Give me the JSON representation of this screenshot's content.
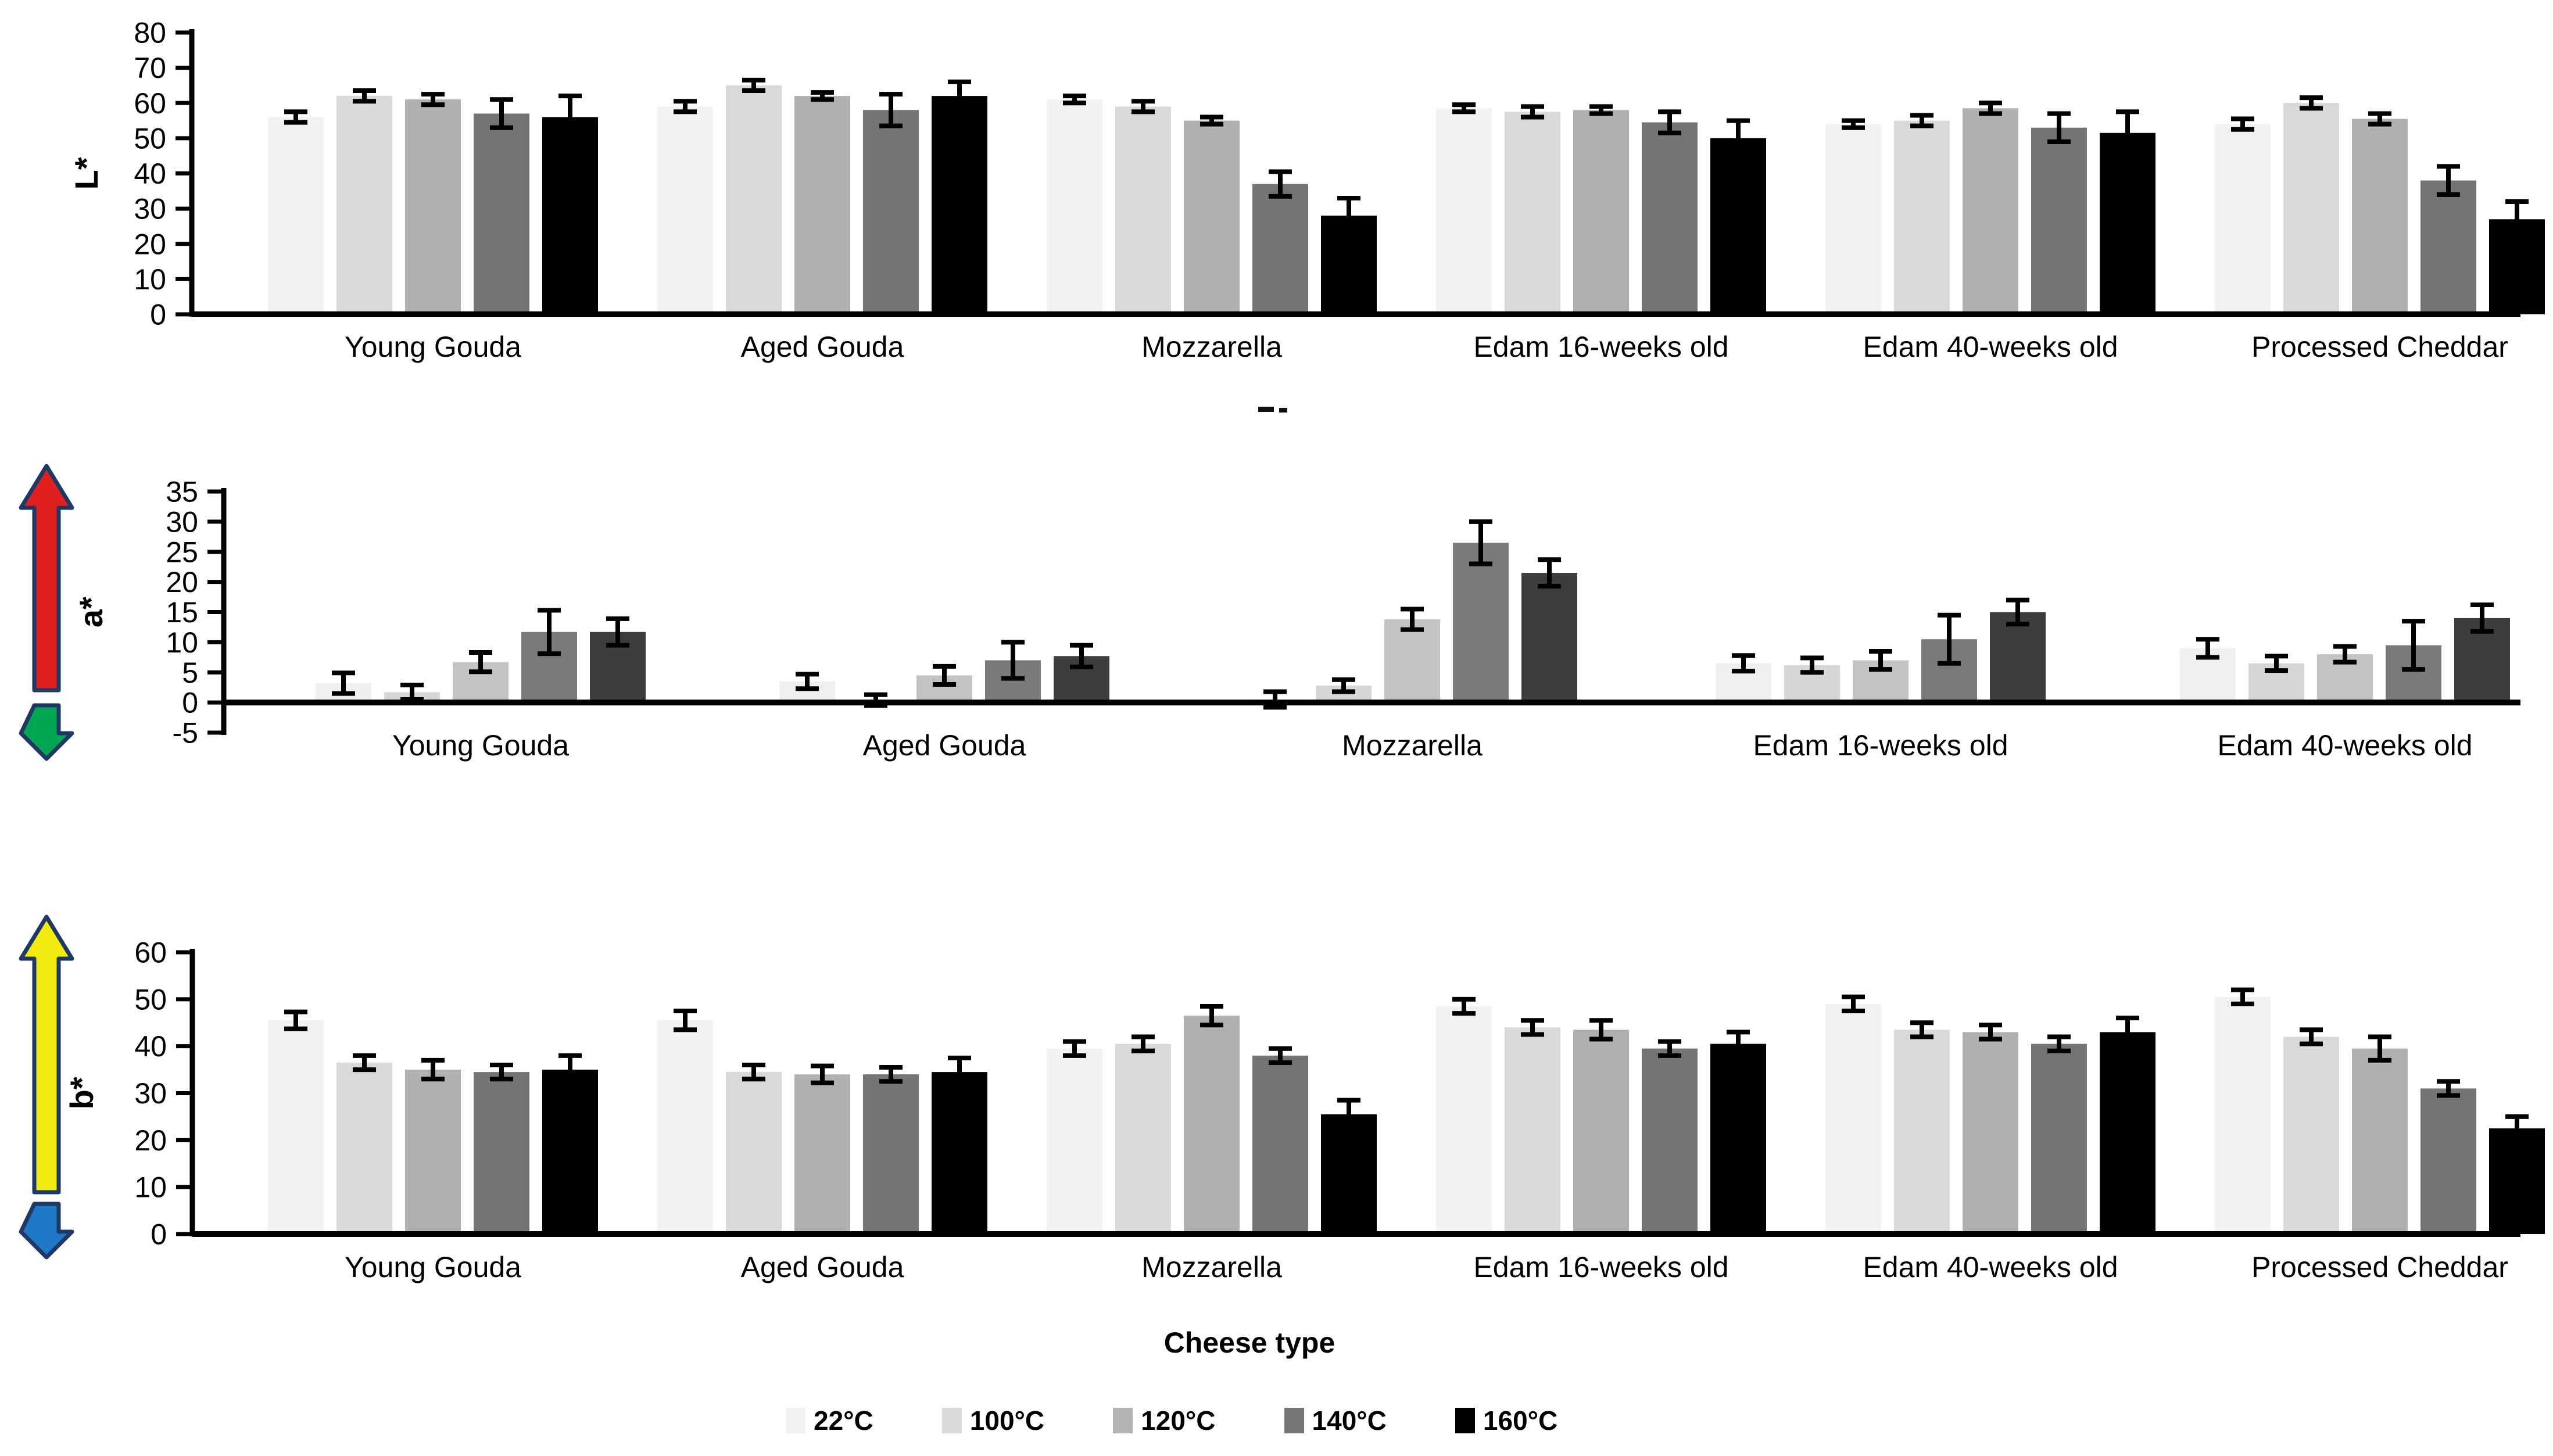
{
  "figure": {
    "background": "#ffffff",
    "text_color": "#000000"
  },
  "legend": {
    "position": "bottom-center",
    "items": [
      {
        "label": "22°C",
        "color": "#f2f2f2"
      },
      {
        "label": "100°C",
        "color": "#d9d9d9"
      },
      {
        "label": "120°C",
        "color": "#b3b3b3"
      },
      {
        "label": "140°C",
        "color": "#767676"
      },
      {
        "label": "160°C",
        "color": "#000000"
      }
    ]
  },
  "indicators": {
    "a_axis_up_arrow_color": "#e0201f",
    "a_axis_down_arrow_color": "#00a651",
    "b_axis_up_arrow_color": "#f2ea10",
    "b_axis_down_arrow_color": "#1e78c8",
    "outline_color": "#1f3864"
  },
  "chart_data": [
    {
      "type": "bar",
      "title": "",
      "ylabel": "L*",
      "xlabel": "",
      "ylim": [
        0,
        80
      ],
      "ytick_step": 10,
      "grid": false,
      "error_bars": true,
      "categories": [
        "Young Gouda",
        "Aged Gouda",
        "Mozzarella",
        "Edam 16-weeks old",
        "Edam 40-weeks old",
        "Processed Cheddar"
      ],
      "series": [
        {
          "name": "22°C",
          "values": [
            56,
            59,
            61,
            58.5,
            54,
            54
          ],
          "errors": [
            1.5,
            1.5,
            1,
            1,
            1,
            1.5
          ]
        },
        {
          "name": "100°C",
          "values": [
            62,
            65,
            59,
            57.5,
            55,
            60
          ],
          "errors": [
            1.5,
            1.5,
            1.5,
            1.5,
            1.5,
            1.5
          ]
        },
        {
          "name": "120°C",
          "values": [
            61,
            62,
            55,
            58,
            58.5,
            55.5
          ],
          "errors": [
            1.5,
            1,
            1,
            1,
            1.5,
            1.5
          ]
        },
        {
          "name": "140°C",
          "values": [
            57,
            58,
            37,
            54.5,
            53,
            38
          ],
          "errors": [
            4,
            4.5,
            3.5,
            3,
            4,
            4
          ]
        },
        {
          "name": "160°C",
          "values": [
            56,
            62,
            28,
            50,
            51.5,
            27
          ],
          "errors": [
            6,
            4,
            5,
            5,
            6,
            5
          ]
        }
      ],
      "palette": [
        "#f2f2f2",
        "#d9d9d9",
        "#b0b0b0",
        "#747474",
        "#000000"
      ]
    },
    {
      "type": "bar",
      "title": "",
      "ylabel": "a*",
      "xlabel": "",
      "ylim": [
        -5,
        35
      ],
      "ytick_step": 5,
      "grid": false,
      "error_bars": true,
      "categories": [
        "Young Gouda",
        "Aged Gouda",
        "Mozzarella",
        "Edam 16-weeks old",
        "Edam 40-weeks old"
      ],
      "series": [
        {
          "name": "22°C",
          "values": [
            3.2,
            3.5,
            0.5,
            6.5,
            9
          ],
          "errors": [
            1.7,
            1.2,
            1.3,
            1.3,
            1.5
          ]
        },
        {
          "name": "100°C",
          "values": [
            1.7,
            0.4,
            2.8,
            6.2,
            6.5
          ],
          "errors": [
            1.2,
            0.9,
            1,
            1.2,
            1.2
          ]
        },
        {
          "name": "120°C",
          "values": [
            6.7,
            4.5,
            13.8,
            7,
            8
          ],
          "errors": [
            1.6,
            1.5,
            1.7,
            1.5,
            1.3
          ]
        },
        {
          "name": "140°C",
          "values": [
            11.7,
            7,
            26.5,
            10.5,
            9.5
          ],
          "errors": [
            3.6,
            3,
            3.5,
            4,
            4
          ]
        },
        {
          "name": "160°C",
          "values": [
            11.7,
            7.7,
            21.5,
            15,
            14
          ],
          "errors": [
            2.2,
            1.8,
            2.2,
            2,
            2.2
          ]
        }
      ],
      "palette": [
        "#f0f0f0",
        "#d6d6d6",
        "#c3c3c3",
        "#7a7a7a",
        "#3d3d3d"
      ]
    },
    {
      "type": "bar",
      "title": "",
      "ylabel": "b*",
      "xlabel": "Cheese type",
      "ylim": [
        0,
        60
      ],
      "ytick_step": 10,
      "grid": false,
      "error_bars": true,
      "categories": [
        "Young Gouda",
        "Aged Gouda",
        "Mozzarella",
        "Edam 16-weeks old",
        "Edam 40-weeks old",
        "Processed Cheddar"
      ],
      "series": [
        {
          "name": "22°C",
          "values": [
            45.5,
            45.5,
            39.5,
            48.5,
            49,
            50.5
          ],
          "errors": [
            1.8,
            2,
            1.5,
            1.5,
            1.5,
            1.5
          ]
        },
        {
          "name": "100°C",
          "values": [
            36.5,
            34.5,
            40.5,
            44,
            43.5,
            42
          ],
          "errors": [
            1.5,
            1.5,
            1.5,
            1.5,
            1.5,
            1.5
          ]
        },
        {
          "name": "120°C",
          "values": [
            35,
            34,
            46.5,
            43.5,
            43,
            39.5
          ],
          "errors": [
            2,
            1.8,
            2,
            2,
            1.5,
            2.5
          ]
        },
        {
          "name": "140°C",
          "values": [
            34.5,
            34,
            38,
            39.5,
            40.5,
            31
          ],
          "errors": [
            1.5,
            1.5,
            1.5,
            1.5,
            1.5,
            1.5
          ]
        },
        {
          "name": "160°C",
          "values": [
            35,
            34.5,
            25.5,
            40.5,
            43,
            22.5
          ],
          "errors": [
            3,
            3,
            3,
            2.5,
            3,
            2.5
          ]
        }
      ],
      "palette": [
        "#f2f2f2",
        "#d9d9d9",
        "#b0b0b0",
        "#747474",
        "#000000"
      ]
    }
  ]
}
